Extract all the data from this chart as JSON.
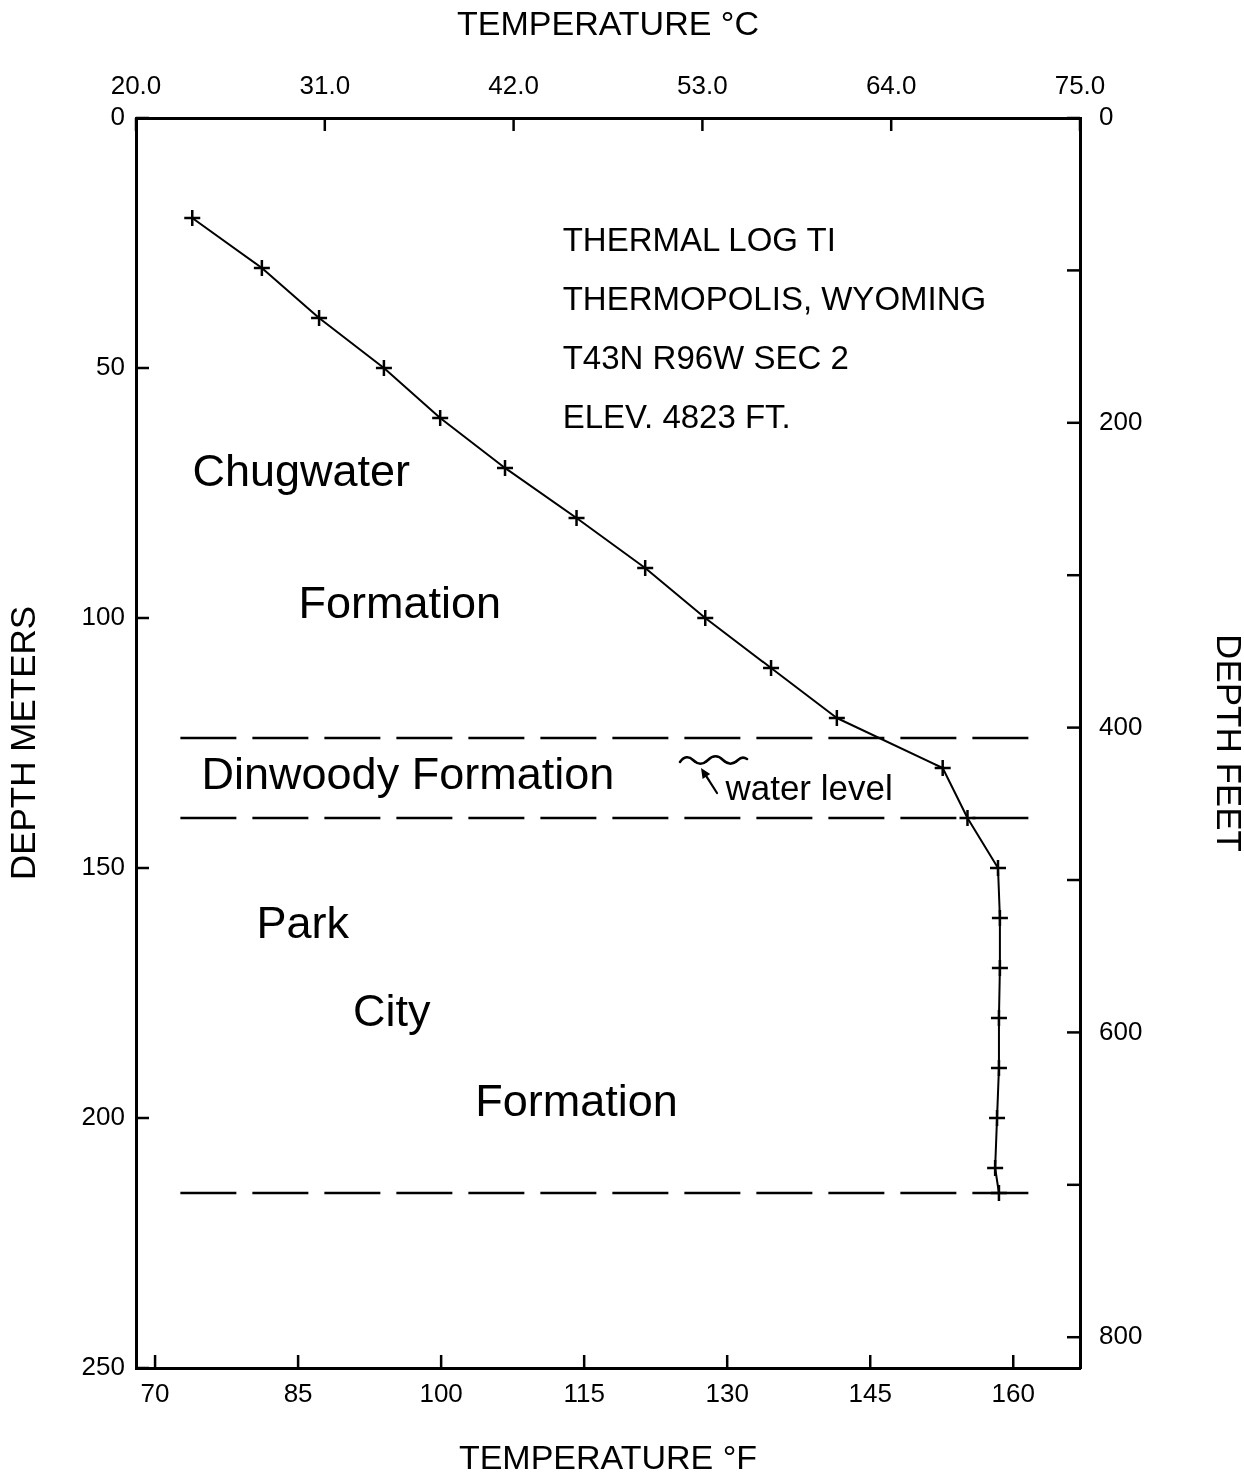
{
  "chart_data": {
    "type": "line",
    "title": "THERMAL LOG TI",
    "xlabel": "TEMPERATURE °F",
    "ylabel": "DEPTH METERS",
    "x2label": "TEMPERATURE °C",
    "y2label": "DEPTH FEET",
    "x": [
      73.9,
      81.2,
      87.2,
      94.0,
      99.9,
      106.7,
      114.2,
      121.4,
      127.7,
      134.6,
      141.5,
      152.6,
      155.2,
      158.4,
      158.6,
      158.6,
      158.5,
      158.5,
      158.3,
      158.1,
      158.5
    ],
    "values": [
      20,
      30,
      40,
      50,
      60,
      70,
      80,
      90,
      100,
      110,
      120,
      130,
      140,
      150,
      160,
      170,
      180,
      190,
      200,
      210,
      215
    ],
    "color": "#000000",
    "marker": "cross",
    "line_style": "solid",
    "xlim": [
      68,
      167
    ],
    "xticks": [
      70,
      85,
      100,
      115,
      130,
      145,
      160
    ],
    "x2lim": [
      20,
      75
    ],
    "x2ticks": [
      {
        "value": 20,
        "label": "20.0"
      },
      {
        "value": 31,
        "label": "31.0"
      },
      {
        "value": 42,
        "label": "42.0"
      },
      {
        "value": 53,
        "label": "53.0"
      },
      {
        "value": 64,
        "label": "64.0"
      },
      {
        "value": 75,
        "label": "75.0"
      }
    ],
    "ylim": [
      250,
      0
    ],
    "yticks": [
      0,
      50,
      100,
      150,
      200,
      250
    ],
    "y2lim": [
      820.2,
      0
    ],
    "y2ticks": [
      0,
      {
        "value": 100,
        "label": null
      },
      200,
      {
        "value": 300,
        "label": null
      },
      400,
      {
        "value": 500,
        "label": null
      },
      600,
      {
        "value": 700,
        "label": null
      },
      800
    ],
    "ref_lines": [
      {
        "axis": "y",
        "value": 124,
        "line_style": "dashed"
      },
      {
        "axis": "y",
        "value": 140,
        "line_style": "dashed"
      },
      {
        "axis": "y",
        "value": 215,
        "line_style": "dashed"
      }
    ],
    "annotations": [
      "THERMOPOLIS, WYOMING",
      "T43N R96W SEC 2",
      "ELEV. 4823 FT.",
      "Chugwater",
      "Formation",
      "Dinwoody Formation",
      "water level",
      "Park",
      "City",
      "Formation"
    ]
  }
}
